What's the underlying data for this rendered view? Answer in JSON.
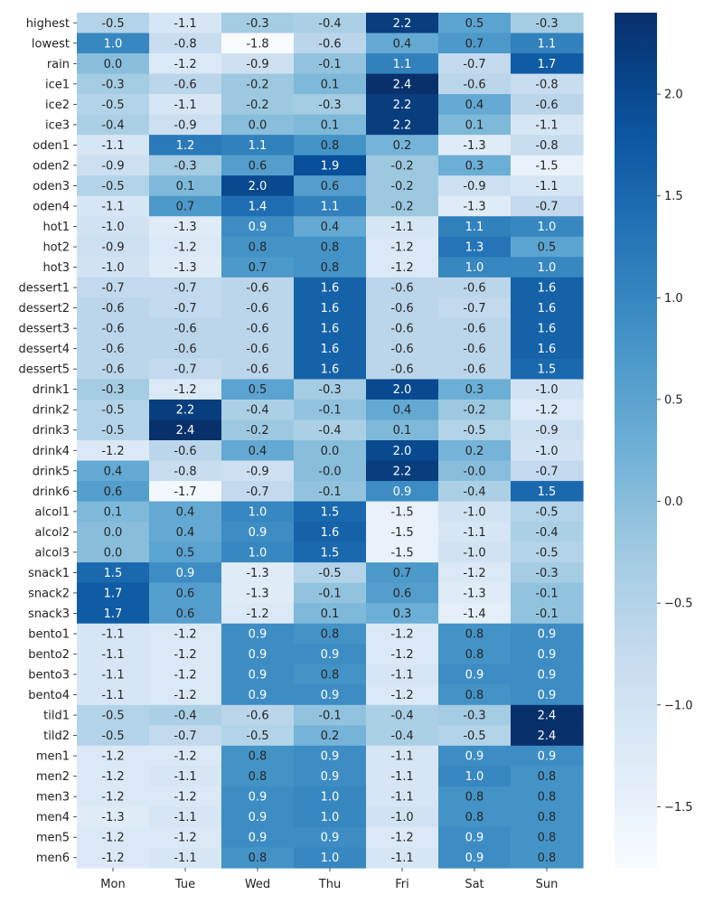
{
  "chart_data": {
    "type": "heatmap",
    "title": "",
    "xlabel": "",
    "ylabel": "",
    "colormap": "Blues",
    "color_range": [
      -1.8,
      2.4
    ],
    "colorbar_ticks": [
      "2.0",
      "1.5",
      "1.0",
      "0.5",
      "0.0",
      "−0.5",
      "−1.0",
      "−1.5"
    ],
    "colorbar_tick_values": [
      2.0,
      1.5,
      1.0,
      0.5,
      0.0,
      -0.5,
      -1.0,
      -1.5
    ],
    "columns": [
      "Mon",
      "Tue",
      "Wed",
      "Thu",
      "Fri",
      "Sat",
      "Sun"
    ],
    "rows": [
      "highest",
      "lowest",
      "rain",
      "ice1",
      "ice2",
      "ice3",
      "oden1",
      "oden2",
      "oden3",
      "oden4",
      "hot1",
      "hot2",
      "hot3",
      "dessert1",
      "dessert2",
      "dessert3",
      "dessert4",
      "dessert5",
      "drink1",
      "drink2",
      "drink3",
      "drink4",
      "drink5",
      "drink6",
      "alcol1",
      "alcol2",
      "alcol3",
      "snack1",
      "snack2",
      "snack3",
      "bento1",
      "bento2",
      "bento3",
      "bento4",
      "tild1",
      "tild2",
      "men1",
      "men2",
      "men3",
      "men4",
      "men5",
      "men6"
    ],
    "values": [
      [
        "-0.5",
        "-1.1",
        "-0.3",
        "-0.4",
        "2.2",
        "0.5",
        "-0.3"
      ],
      [
        "1.0",
        "-0.8",
        "-1.8",
        "-0.6",
        "0.4",
        "0.7",
        "1.1"
      ],
      [
        "0.0",
        "-1.2",
        "-0.9",
        "-0.1",
        "1.1",
        "-0.7",
        "1.7"
      ],
      [
        "-0.3",
        "-0.6",
        "-0.2",
        "0.1",
        "2.4",
        "-0.6",
        "-0.8"
      ],
      [
        "-0.5",
        "-1.1",
        "-0.2",
        "-0.3",
        "2.2",
        "0.4",
        "-0.6"
      ],
      [
        "-0.4",
        "-0.9",
        "0.0",
        "0.1",
        "2.2",
        "0.1",
        "-1.1"
      ],
      [
        "-1.1",
        "1.2",
        "1.1",
        "0.8",
        "0.2",
        "-1.3",
        "-0.8"
      ],
      [
        "-0.9",
        "-0.3",
        "0.6",
        "1.9",
        "-0.2",
        "0.3",
        "-1.5"
      ],
      [
        "-0.5",
        "0.1",
        "2.0",
        "0.6",
        "-0.2",
        "-0.9",
        "-1.1"
      ],
      [
        "-1.1",
        "0.7",
        "1.4",
        "1.1",
        "-0.2",
        "-1.3",
        "-0.7"
      ],
      [
        "-1.0",
        "-1.3",
        "0.9",
        "0.4",
        "-1.1",
        "1.1",
        "1.0"
      ],
      [
        "-0.9",
        "-1.2",
        "0.8",
        "0.8",
        "-1.2",
        "1.3",
        "0.5"
      ],
      [
        "-1.0",
        "-1.3",
        "0.7",
        "0.8",
        "-1.2",
        "1.0",
        "1.0"
      ],
      [
        "-0.7",
        "-0.7",
        "-0.6",
        "1.6",
        "-0.6",
        "-0.6",
        "1.6"
      ],
      [
        "-0.6",
        "-0.7",
        "-0.6",
        "1.6",
        "-0.6",
        "-0.7",
        "1.6"
      ],
      [
        "-0.6",
        "-0.6",
        "-0.6",
        "1.6",
        "-0.6",
        "-0.6",
        "1.6"
      ],
      [
        "-0.6",
        "-0.6",
        "-0.6",
        "1.6",
        "-0.6",
        "-0.6",
        "1.6"
      ],
      [
        "-0.6",
        "-0.7",
        "-0.6",
        "1.6",
        "-0.6",
        "-0.6",
        "1.5"
      ],
      [
        "-0.3",
        "-1.2",
        "0.5",
        "-0.3",
        "2.0",
        "0.3",
        "-1.0"
      ],
      [
        "-0.5",
        "2.2",
        "-0.4",
        "-0.1",
        "0.4",
        "-0.2",
        "-1.2"
      ],
      [
        "-0.5",
        "2.4",
        "-0.2",
        "-0.4",
        "0.1",
        "-0.5",
        "-0.9"
      ],
      [
        "-1.2",
        "-0.6",
        "0.4",
        "0.0",
        "2.0",
        "0.2",
        "-1.0"
      ],
      [
        "0.4",
        "-0.8",
        "-0.9",
        "-0.0",
        "2.2",
        "-0.0",
        "-0.7"
      ],
      [
        "0.6",
        "-1.7",
        "-0.7",
        "-0.1",
        "0.9",
        "-0.4",
        "1.5"
      ],
      [
        "0.1",
        "0.4",
        "1.0",
        "1.5",
        "-1.5",
        "-1.0",
        "-0.5"
      ],
      [
        "0.0",
        "0.4",
        "0.9",
        "1.6",
        "-1.5",
        "-1.1",
        "-0.4"
      ],
      [
        "0.0",
        "0.5",
        "1.0",
        "1.5",
        "-1.5",
        "-1.0",
        "-0.5"
      ],
      [
        "1.5",
        "0.9",
        "-1.3",
        "-0.5",
        "0.7",
        "-1.2",
        "-0.3"
      ],
      [
        "1.7",
        "0.6",
        "-1.3",
        "-0.1",
        "0.6",
        "-1.3",
        "-0.1"
      ],
      [
        "1.7",
        "0.6",
        "-1.2",
        "0.1",
        "0.3",
        "-1.4",
        "-0.1"
      ],
      [
        "-1.1",
        "-1.2",
        "0.9",
        "0.8",
        "-1.2",
        "0.8",
        "0.9"
      ],
      [
        "-1.1",
        "-1.2",
        "0.9",
        "0.9",
        "-1.2",
        "0.8",
        "0.9"
      ],
      [
        "-1.1",
        "-1.2",
        "0.9",
        "0.8",
        "-1.1",
        "0.9",
        "0.9"
      ],
      [
        "-1.1",
        "-1.2",
        "0.9",
        "0.9",
        "-1.2",
        "0.8",
        "0.9"
      ],
      [
        "-0.5",
        "-0.4",
        "-0.6",
        "-0.1",
        "-0.4",
        "-0.3",
        "2.4"
      ],
      [
        "-0.5",
        "-0.7",
        "-0.5",
        "0.2",
        "-0.4",
        "-0.5",
        "2.4"
      ],
      [
        "-1.2",
        "-1.2",
        "0.8",
        "0.9",
        "-1.1",
        "0.9",
        "0.9"
      ],
      [
        "-1.2",
        "-1.1",
        "0.8",
        "0.9",
        "-1.1",
        "1.0",
        "0.8"
      ],
      [
        "-1.2",
        "-1.2",
        "0.9",
        "1.0",
        "-1.1",
        "0.8",
        "0.8"
      ],
      [
        "-1.3",
        "-1.1",
        "0.9",
        "1.0",
        "-1.0",
        "0.8",
        "0.8"
      ],
      [
        "-1.2",
        "-1.2",
        "0.9",
        "0.9",
        "-1.2",
        "0.9",
        "0.8"
      ],
      [
        "-1.2",
        "-1.1",
        "0.8",
        "1.0",
        "-1.1",
        "0.9",
        "0.8"
      ]
    ]
  }
}
